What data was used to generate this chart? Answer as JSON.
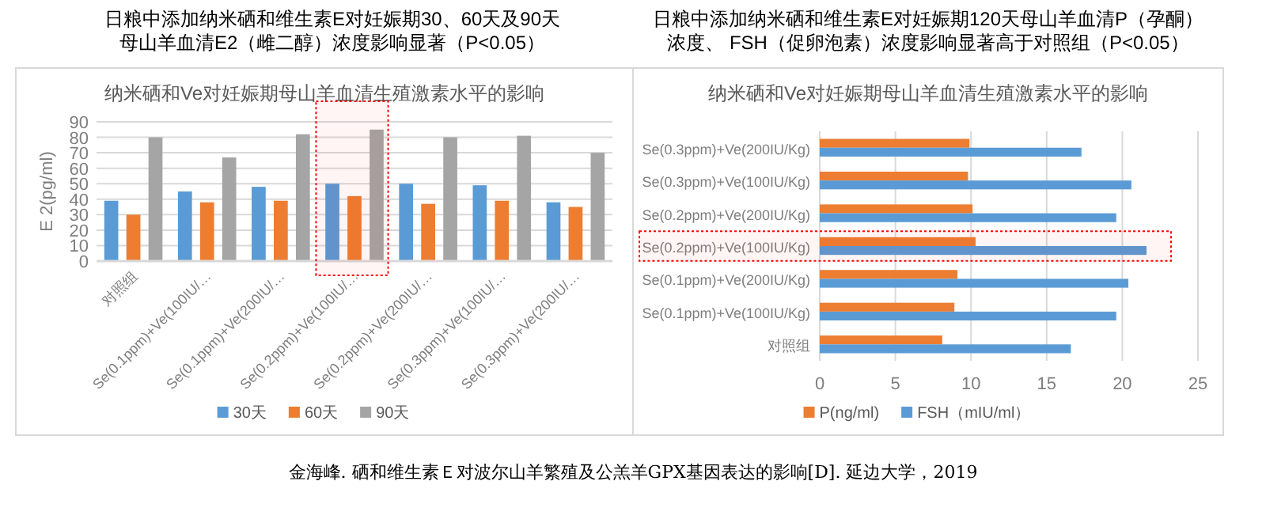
{
  "chart_data": [
    {
      "type": "bar",
      "title": "日粮中添加纳米硒和维生素E对妊娠期30、60天及90天母山羊血清E2（雌二醇）浓度影响显著（P<0.05）",
      "subtitle": "纳米硒和Ve对妊娠期母山羊血清生殖激素水平的影响",
      "ylabel": "E 2(pg/ml)",
      "categories": [
        "对照组",
        "Se(0.1ppm)+Ve(100IU/…",
        "Se(0.1ppm)+Ve(200IU/…",
        "Se(0.2ppm)+Ve(100IU/…",
        "Se(0.2ppm)+Ve(200IU/…",
        "Se(0.3ppm)+Ve(100IU/…",
        "Se(0.3ppm)+Ve(200IU/…"
      ],
      "series": [
        {
          "name": "30天",
          "color": "#5b9bd5",
          "values": [
            39,
            45,
            48,
            50,
            50,
            49,
            38
          ]
        },
        {
          "name": "60天",
          "color": "#ed7d31",
          "values": [
            30,
            38,
            39,
            42,
            37,
            39,
            35
          ]
        },
        {
          "name": "90天",
          "color": "#a5a5a5",
          "values": [
            80,
            67,
            82,
            85,
            80,
            81,
            70
          ]
        }
      ],
      "ylim": [
        0,
        90
      ],
      "yticks": [
        0,
        10,
        20,
        30,
        40,
        50,
        60,
        70,
        80,
        90
      ],
      "grid": "y",
      "legend": "bottom",
      "bands": [
        {
          "axis": "x",
          "from": "Se(0.2ppm)+Ve(100IU/…",
          "to": "Se(0.2ppm)+Ve(100IU/…",
          "color": "#ff0000"
        }
      ],
      "annotations": [
        "金海峰. 硒和维生素Ｅ对波尔山羊繁殖及公羔羊GPX基因表达的影响[D]. 延边大学，2019"
      ]
    },
    {
      "type": "bar",
      "orientation": "horizontal",
      "title": "日粮中添加纳米硒和维生素E对妊娠期120天母山羊血清P（孕酮）浓度、 FSH（促卵泡素）浓度影响显著高于对照组（P<0.05）",
      "subtitle": "纳米硒和Ve对妊娠期母山羊血清生殖激素水平的影响",
      "categories": [
        "Se(0.3ppm)+Ve(200IU/Kg)",
        "Se(0.3ppm)+Ve(100IU/Kg)",
        "Se(0.2ppm)+Ve(200IU/Kg)",
        "Se(0.2ppm)+Ve(100IU/Kg)",
        "Se(0.1ppm)+Ve(200IU/Kg)",
        "Se(0.1ppm)+Ve(100IU/Kg)",
        "对照组"
      ],
      "series": [
        {
          "name": "P(ng/ml)",
          "color": "#ed7d31",
          "values": [
            9.9,
            9.8,
            10.1,
            10.3,
            9.1,
            8.9,
            8.1
          ]
        },
        {
          "name": "FSH（mIU/ml）",
          "color": "#5b9bd5",
          "values": [
            17.3,
            20.6,
            19.6,
            21.6,
            20.4,
            19.6,
            16.6
          ]
        }
      ],
      "xlim": [
        0,
        25
      ],
      "xticks": [
        0,
        5,
        10,
        15,
        20,
        25
      ],
      "grid": "x",
      "legend": "bottom",
      "bands": [
        {
          "axis": "y",
          "from": "Se(0.2ppm)+Ve(100IU/Kg)",
          "to": "Se(0.2ppm)+Ve(100IU/Kg)",
          "color": "#ff0000"
        }
      ]
    }
  ]
}
